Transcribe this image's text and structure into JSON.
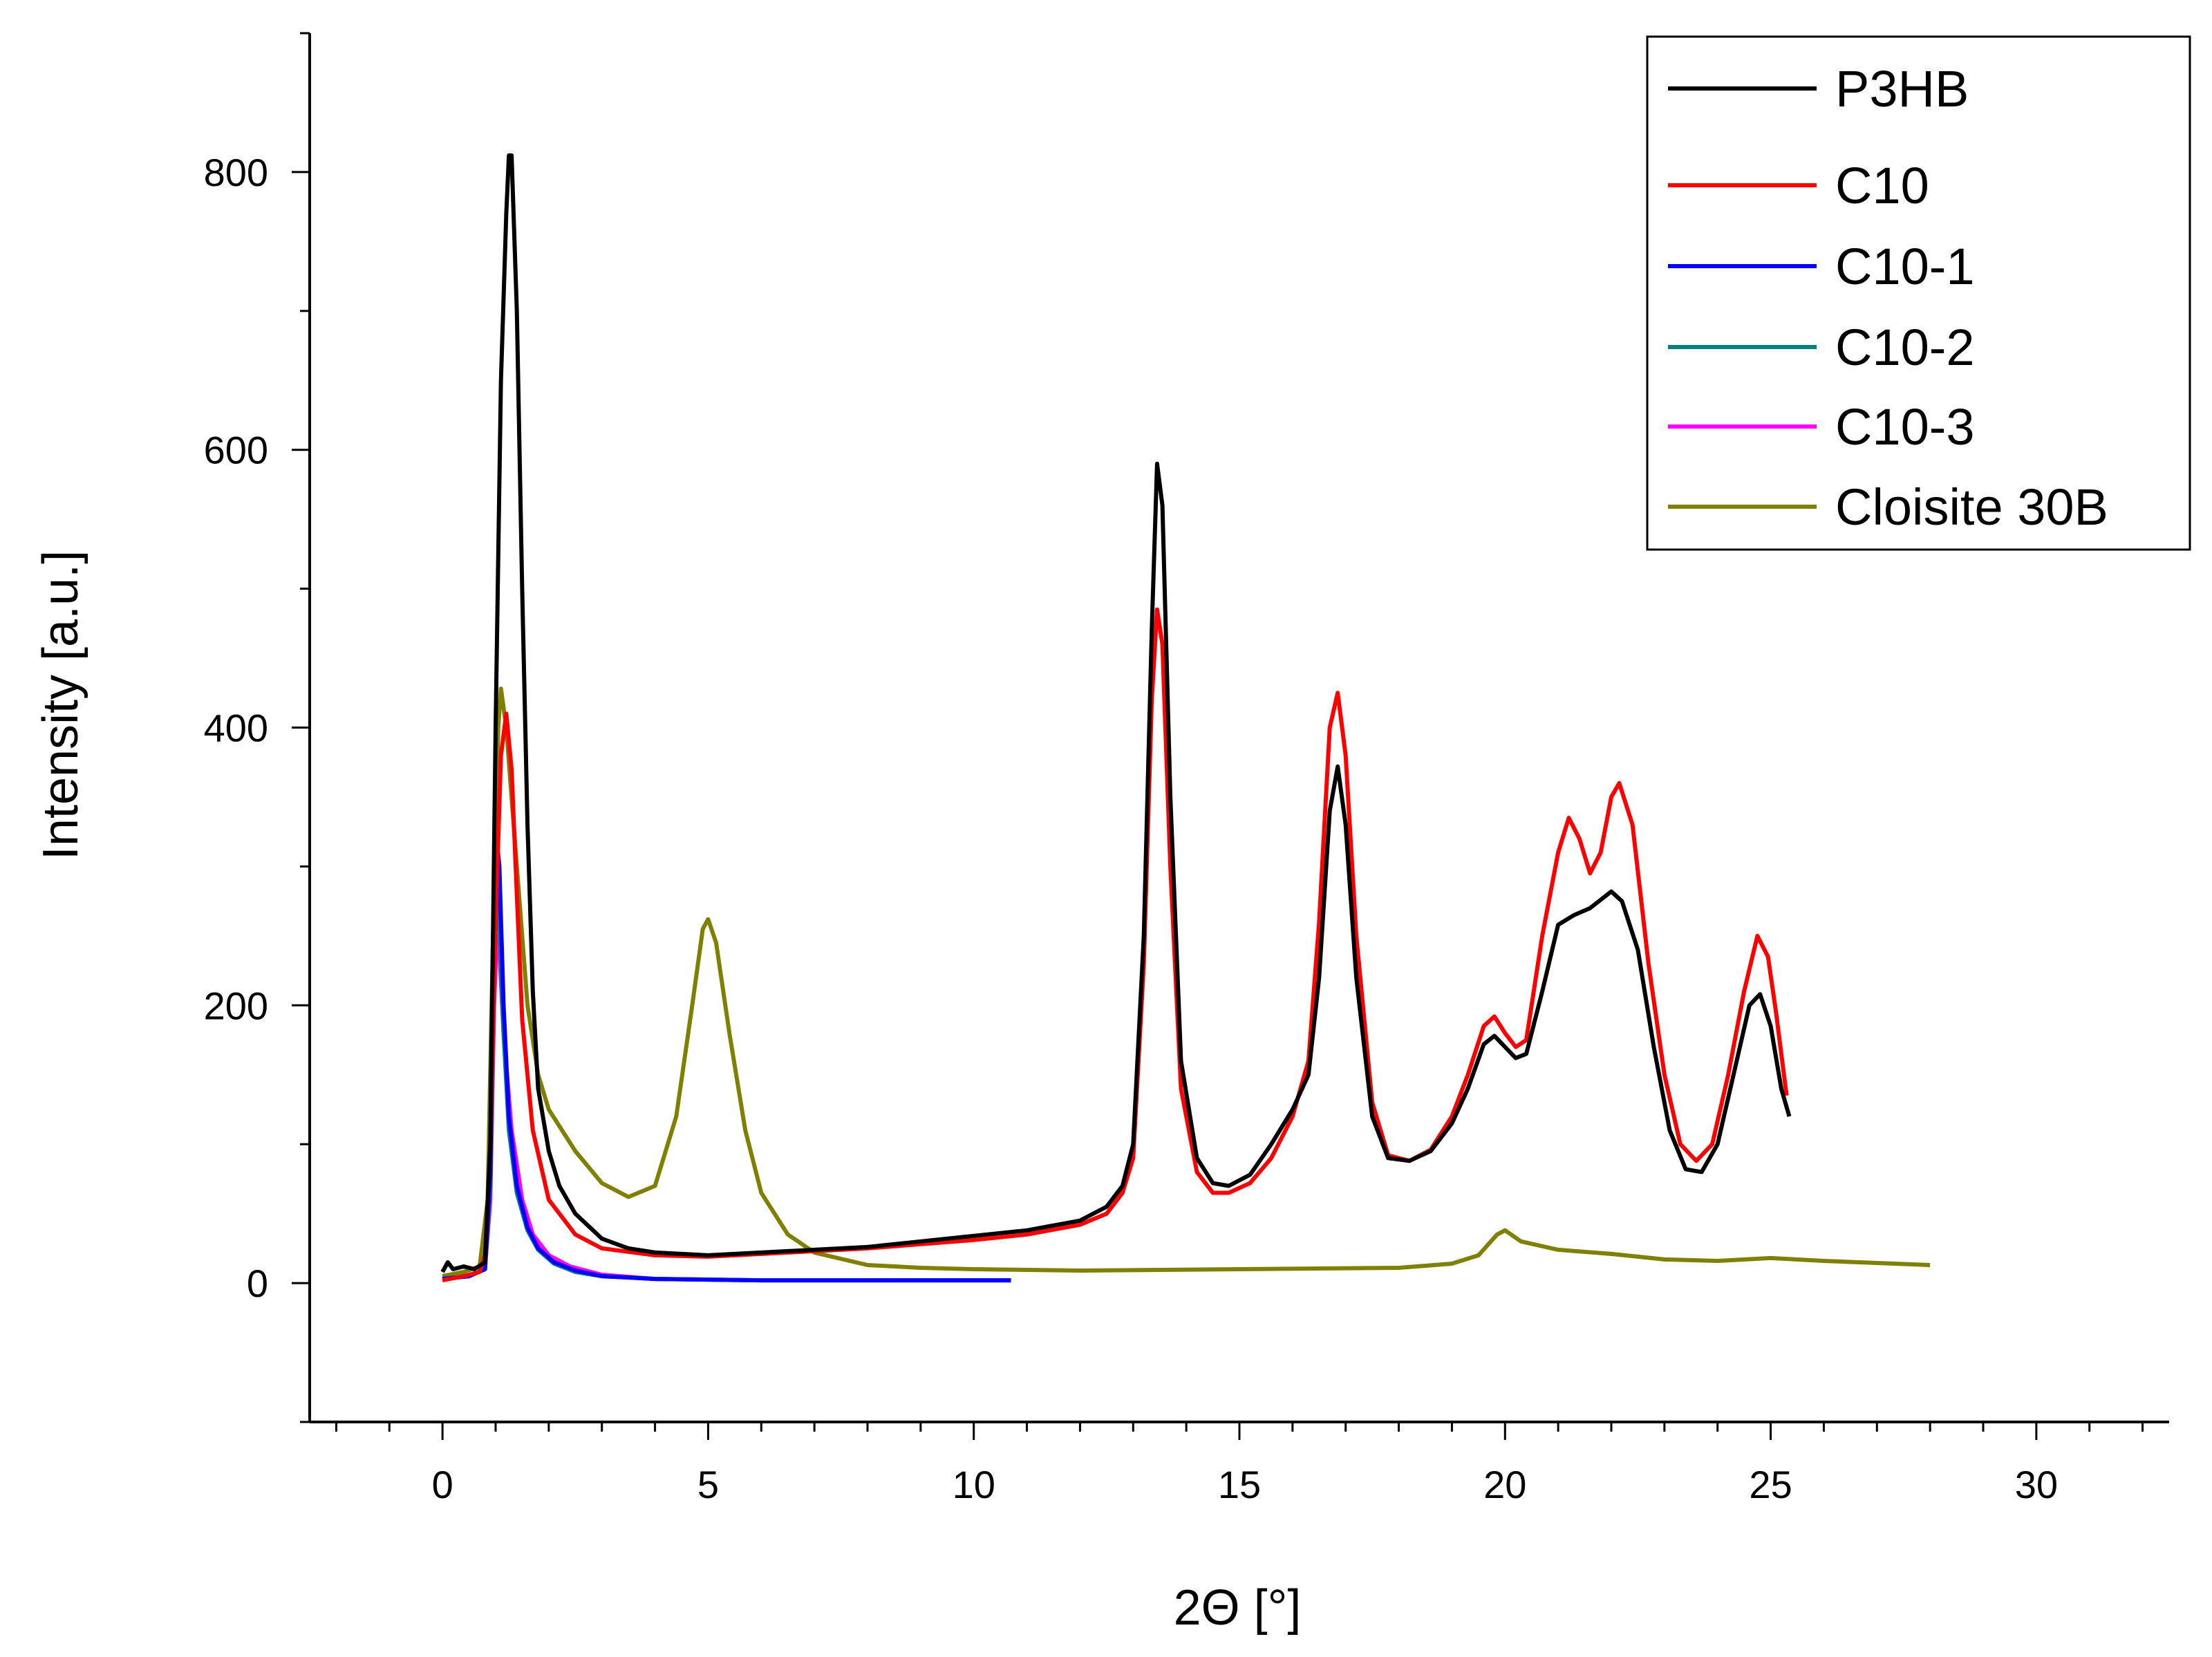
{
  "chart_data": {
    "type": "line",
    "title": "",
    "xlabel": "2Θ [°]",
    "ylabel": "Intensity [a.u.]",
    "xlim": [
      -2.5,
      32.5
    ],
    "ylim": [
      -100,
      900
    ],
    "xticks": [
      0,
      5,
      10,
      15,
      20,
      25,
      30
    ],
    "yticks": [
      0,
      200,
      400,
      600,
      800
    ],
    "x_minor_step": 1,
    "y_minor_step": 100,
    "legend_position": "top-right",
    "series": [
      {
        "name": "P3HB",
        "color": "#000000",
        "points": [
          [
            0,
            8
          ],
          [
            0.1,
            15
          ],
          [
            0.2,
            10
          ],
          [
            0.4,
            12
          ],
          [
            0.6,
            10
          ],
          [
            0.8,
            15
          ],
          [
            0.9,
            100
          ],
          [
            1.0,
            400
          ],
          [
            1.1,
            650
          ],
          [
            1.2,
            770
          ],
          [
            1.25,
            812
          ],
          [
            1.3,
            812
          ],
          [
            1.4,
            700
          ],
          [
            1.5,
            500
          ],
          [
            1.6,
            330
          ],
          [
            1.7,
            210
          ],
          [
            1.8,
            140
          ],
          [
            2.0,
            95
          ],
          [
            2.2,
            70
          ],
          [
            2.5,
            50
          ],
          [
            3.0,
            32
          ],
          [
            3.5,
            25
          ],
          [
            4.0,
            22
          ],
          [
            5.0,
            20
          ],
          [
            6.0,
            22
          ],
          [
            7.0,
            24
          ],
          [
            8.0,
            26
          ],
          [
            9.0,
            30
          ],
          [
            10.0,
            34
          ],
          [
            11.0,
            38
          ],
          [
            12.0,
            45
          ],
          [
            12.5,
            55
          ],
          [
            12.8,
            70
          ],
          [
            13.0,
            100
          ],
          [
            13.2,
            250
          ],
          [
            13.35,
            470
          ],
          [
            13.45,
            590
          ],
          [
            13.55,
            560
          ],
          [
            13.7,
            350
          ],
          [
            13.9,
            160
          ],
          [
            14.2,
            90
          ],
          [
            14.5,
            72
          ],
          [
            14.8,
            70
          ],
          [
            15.2,
            78
          ],
          [
            15.6,
            100
          ],
          [
            16.0,
            125
          ],
          [
            16.3,
            150
          ],
          [
            16.5,
            220
          ],
          [
            16.7,
            340
          ],
          [
            16.85,
            372
          ],
          [
            17.0,
            330
          ],
          [
            17.2,
            220
          ],
          [
            17.5,
            120
          ],
          [
            17.8,
            90
          ],
          [
            18.2,
            88
          ],
          [
            18.6,
            95
          ],
          [
            19.0,
            115
          ],
          [
            19.3,
            140
          ],
          [
            19.6,
            172
          ],
          [
            19.8,
            178
          ],
          [
            20.0,
            170
          ],
          [
            20.2,
            162
          ],
          [
            20.4,
            165
          ],
          [
            20.7,
            210
          ],
          [
            21.0,
            258
          ],
          [
            21.3,
            265
          ],
          [
            21.6,
            270
          ],
          [
            22.0,
            282
          ],
          [
            22.2,
            275
          ],
          [
            22.5,
            240
          ],
          [
            22.8,
            170
          ],
          [
            23.1,
            110
          ],
          [
            23.4,
            82
          ],
          [
            23.7,
            80
          ],
          [
            24.0,
            100
          ],
          [
            24.3,
            150
          ],
          [
            24.6,
            200
          ],
          [
            24.8,
            208
          ],
          [
            25.0,
            185
          ],
          [
            25.2,
            140
          ],
          [
            25.35,
            120
          ]
        ]
      },
      {
        "name": "C10",
        "color": "#ff0000",
        "points": [
          [
            0,
            2
          ],
          [
            0.4,
            5
          ],
          [
            0.7,
            8
          ],
          [
            0.8,
            20
          ],
          [
            0.9,
            100
          ],
          [
            1.0,
            260
          ],
          [
            1.1,
            380
          ],
          [
            1.2,
            410
          ],
          [
            1.3,
            370
          ],
          [
            1.4,
            280
          ],
          [
            1.5,
            190
          ],
          [
            1.7,
            110
          ],
          [
            2.0,
            60
          ],
          [
            2.5,
            35
          ],
          [
            3.0,
            25
          ],
          [
            4.0,
            20
          ],
          [
            5.0,
            19
          ],
          [
            6.0,
            21
          ],
          [
            7.0,
            23
          ],
          [
            8.0,
            25
          ],
          [
            9.0,
            28
          ],
          [
            10.0,
            31
          ],
          [
            11.0,
            35
          ],
          [
            12.0,
            42
          ],
          [
            12.5,
            50
          ],
          [
            12.8,
            65
          ],
          [
            13.0,
            90
          ],
          [
            13.2,
            230
          ],
          [
            13.35,
            420
          ],
          [
            13.45,
            485
          ],
          [
            13.55,
            460
          ],
          [
            13.7,
            300
          ],
          [
            13.9,
            140
          ],
          [
            14.2,
            80
          ],
          [
            14.5,
            65
          ],
          [
            14.8,
            65
          ],
          [
            15.2,
            72
          ],
          [
            15.6,
            90
          ],
          [
            16.0,
            120
          ],
          [
            16.3,
            160
          ],
          [
            16.5,
            260
          ],
          [
            16.7,
            400
          ],
          [
            16.85,
            425
          ],
          [
            17.0,
            380
          ],
          [
            17.2,
            250
          ],
          [
            17.5,
            130
          ],
          [
            17.8,
            92
          ],
          [
            18.2,
            88
          ],
          [
            18.6,
            96
          ],
          [
            19.0,
            120
          ],
          [
            19.3,
            150
          ],
          [
            19.6,
            185
          ],
          [
            19.8,
            192
          ],
          [
            20.0,
            180
          ],
          [
            20.2,
            170
          ],
          [
            20.4,
            175
          ],
          [
            20.7,
            250
          ],
          [
            21.0,
            310
          ],
          [
            21.2,
            335
          ],
          [
            21.4,
            320
          ],
          [
            21.6,
            295
          ],
          [
            21.8,
            310
          ],
          [
            22.0,
            350
          ],
          [
            22.15,
            360
          ],
          [
            22.4,
            330
          ],
          [
            22.7,
            230
          ],
          [
            23.0,
            150
          ],
          [
            23.3,
            100
          ],
          [
            23.6,
            88
          ],
          [
            23.9,
            100
          ],
          [
            24.2,
            150
          ],
          [
            24.5,
            210
          ],
          [
            24.75,
            250
          ],
          [
            24.95,
            235
          ],
          [
            25.1,
            195
          ],
          [
            25.3,
            135
          ]
        ]
      },
      {
        "name": "C10-1",
        "color": "#0000ff",
        "points": [
          [
            0,
            3
          ],
          [
            0.5,
            5
          ],
          [
            0.8,
            10
          ],
          [
            0.9,
            80
          ],
          [
            0.97,
            250
          ],
          [
            1.02,
            320
          ],
          [
            1.07,
            300
          ],
          [
            1.15,
            200
          ],
          [
            1.25,
            120
          ],
          [
            1.4,
            70
          ],
          [
            1.6,
            40
          ],
          [
            1.8,
            25
          ],
          [
            2.1,
            15
          ],
          [
            2.5,
            9
          ],
          [
            3.0,
            5
          ],
          [
            4.0,
            3
          ],
          [
            6.0,
            2
          ],
          [
            8.0,
            2
          ],
          [
            10.7,
            2
          ]
        ]
      },
      {
        "name": "C10-2",
        "color": "#008080",
        "points": [
          [
            0,
            3
          ],
          [
            0.5,
            5
          ],
          [
            0.8,
            10
          ],
          [
            0.9,
            70
          ],
          [
            0.97,
            220
          ],
          [
            1.02,
            280
          ],
          [
            1.07,
            260
          ],
          [
            1.15,
            180
          ],
          [
            1.25,
            110
          ],
          [
            1.4,
            65
          ],
          [
            1.6,
            38
          ],
          [
            1.8,
            24
          ],
          [
            2.1,
            14
          ],
          [
            2.5,
            8
          ],
          [
            3.0,
            5
          ],
          [
            4.0,
            3
          ],
          [
            6.0,
            2
          ],
          [
            8.0,
            2
          ],
          [
            10.7,
            2
          ]
        ]
      },
      {
        "name": "C10-3",
        "color": "#ff00ff",
        "points": [
          [
            0,
            3
          ],
          [
            0.5,
            5
          ],
          [
            0.8,
            10
          ],
          [
            0.9,
            60
          ],
          [
            0.97,
            200
          ],
          [
            1.02,
            250
          ],
          [
            1.07,
            240
          ],
          [
            1.15,
            180
          ],
          [
            1.3,
            110
          ],
          [
            1.5,
            60
          ],
          [
            1.7,
            35
          ],
          [
            2.0,
            20
          ],
          [
            2.4,
            12
          ],
          [
            3.0,
            6
          ],
          [
            4.0,
            3
          ],
          [
            6.0,
            2
          ],
          [
            8.0,
            2
          ],
          [
            10.7,
            2
          ]
        ]
      },
      {
        "name": "Cloisite 30B",
        "color": "#808000",
        "points": [
          [
            0,
            5
          ],
          [
            0.4,
            8
          ],
          [
            0.7,
            12
          ],
          [
            0.85,
            60
          ],
          [
            0.95,
            250
          ],
          [
            1.05,
            400
          ],
          [
            1.1,
            428
          ],
          [
            1.2,
            400
          ],
          [
            1.4,
            300
          ],
          [
            1.6,
            200
          ],
          [
            1.8,
            150
          ],
          [
            2.0,
            125
          ],
          [
            2.5,
            95
          ],
          [
            3.0,
            72
          ],
          [
            3.5,
            62
          ],
          [
            4.0,
            70
          ],
          [
            4.4,
            120
          ],
          [
            4.7,
            200
          ],
          [
            4.9,
            255
          ],
          [
            5.0,
            262
          ],
          [
            5.15,
            245
          ],
          [
            5.4,
            180
          ],
          [
            5.7,
            110
          ],
          [
            6.0,
            65
          ],
          [
            6.5,
            35
          ],
          [
            7.0,
            22
          ],
          [
            8.0,
            13
          ],
          [
            9.0,
            11
          ],
          [
            10.0,
            10
          ],
          [
            12.0,
            9
          ],
          [
            15.0,
            10
          ],
          [
            18.0,
            11
          ],
          [
            19.0,
            14
          ],
          [
            19.5,
            20
          ],
          [
            19.85,
            35
          ],
          [
            20.0,
            38
          ],
          [
            20.3,
            30
          ],
          [
            21.0,
            24
          ],
          [
            22.0,
            21
          ],
          [
            23.0,
            17
          ],
          [
            24.0,
            16
          ],
          [
            25.0,
            18
          ],
          [
            26.0,
            16
          ],
          [
            28.0,
            13
          ]
        ]
      }
    ]
  }
}
